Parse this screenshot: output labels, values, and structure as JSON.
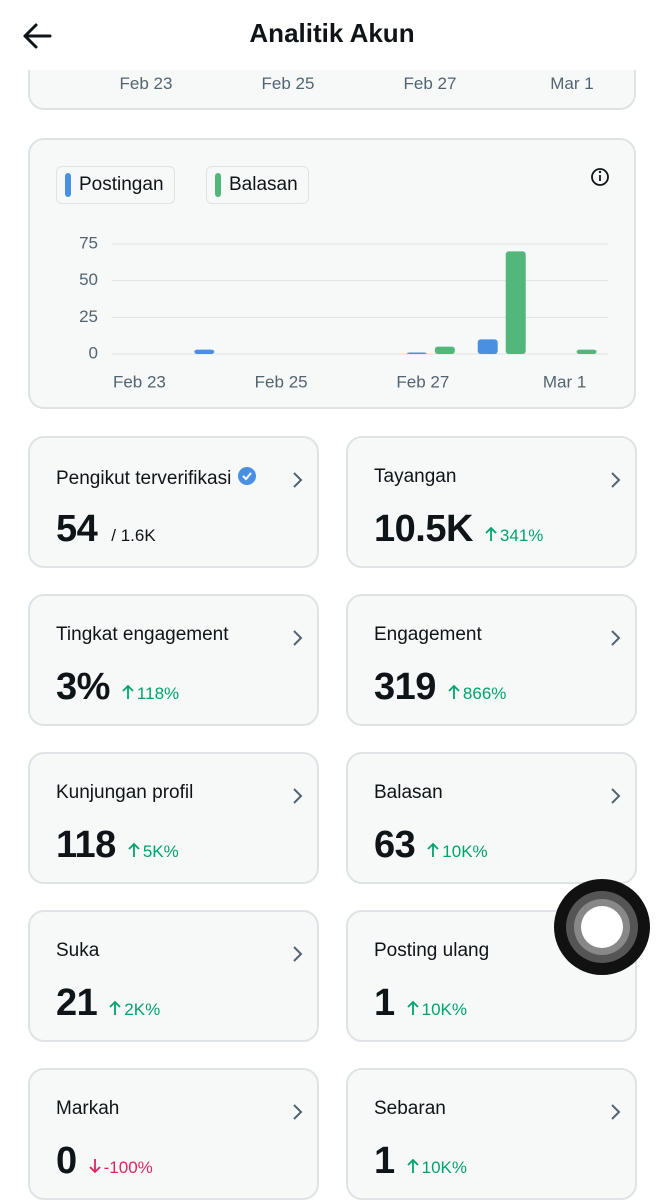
{
  "header": {
    "title": "Analitik Akun"
  },
  "top_chart": {
    "x_labels": [
      "Feb 23",
      "Feb 25",
      "Feb 27",
      "Mar 1"
    ]
  },
  "chart_data": {
    "type": "bar",
    "categories": [
      "Feb 23",
      null,
      "Feb 25",
      null,
      "Feb 27",
      null,
      "Mar 1"
    ],
    "series": [
      {
        "name": "Postingan",
        "color": "#4a90e2",
        "values": [
          0,
          3,
          0,
          0,
          1,
          10,
          0
        ]
      },
      {
        "name": "Balasan",
        "color": "#52b77b",
        "values": [
          0,
          0,
          0,
          0,
          5,
          70,
          3
        ]
      }
    ],
    "ylim": [
      0,
      75
    ],
    "yticks": [
      0,
      25,
      50,
      75
    ],
    "grid": true
  },
  "metrics": [
    {
      "label": "Pengikut terverifikasi",
      "value": "54",
      "total": "/ 1.6K",
      "verified": true
    },
    {
      "label": "Tayangan",
      "value": "10.5K",
      "change": "341%",
      "direction": "up"
    },
    {
      "label": "Tingkat engagement",
      "value": "3%",
      "change": "118%",
      "direction": "up"
    },
    {
      "label": "Engagement",
      "value": "319",
      "change": "866%",
      "direction": "up"
    },
    {
      "label": "Kunjungan profil",
      "value": "118",
      "change": "5K%",
      "direction": "up"
    },
    {
      "label": "Balasan",
      "value": "63",
      "change": "10K%",
      "direction": "up"
    },
    {
      "label": "Suka",
      "value": "21",
      "change": "2K%",
      "direction": "up"
    },
    {
      "label": "Posting ulang",
      "value": "1",
      "change": "10K%",
      "direction": "up"
    },
    {
      "label": "Markah",
      "value": "0",
      "change": "-100%",
      "direction": "down"
    },
    {
      "label": "Sebaran",
      "value": "1",
      "change": "10K%",
      "direction": "up"
    }
  ]
}
